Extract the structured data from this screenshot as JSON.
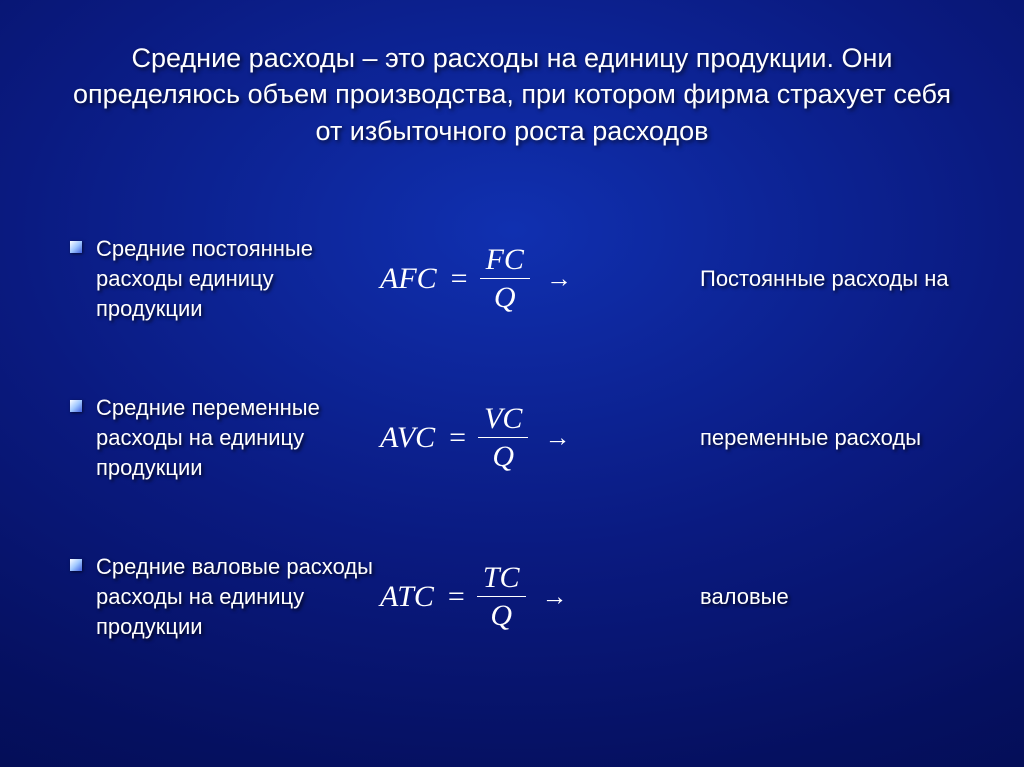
{
  "title": "Средние расходы – это расходы на единицу продукции. Они определяюсь объем производства, при котором фирма страхует себя от избыточного роста расходов",
  "rows": [
    {
      "label": "Средние постоянные расходы единицу продукции",
      "lhs": "AFC",
      "num": "FC",
      "den": "Q",
      "right": "Постоянные расходы на"
    },
    {
      "label": "Средние переменные расходы на единицу продукции",
      "lhs": "AVC",
      "num": "VC",
      "den": "Q",
      "right": "переменные расходы"
    },
    {
      "label": "Средние валовые расходы расходы на единицу продукции",
      "lhs": "ATC",
      "num": "TC",
      "den": "Q",
      "right": "валовые"
    }
  ],
  "style": {
    "title_fontsize": 27,
    "label_fontsize": 22,
    "formula_fontsize": 30,
    "text_color": "#ffffff",
    "background_center": "#1030b0",
    "background_edge": "#02073a",
    "bullet_size": 12,
    "bullet_gradient_start": "#ffffff",
    "bullet_gradient_end": "#4060e0"
  }
}
